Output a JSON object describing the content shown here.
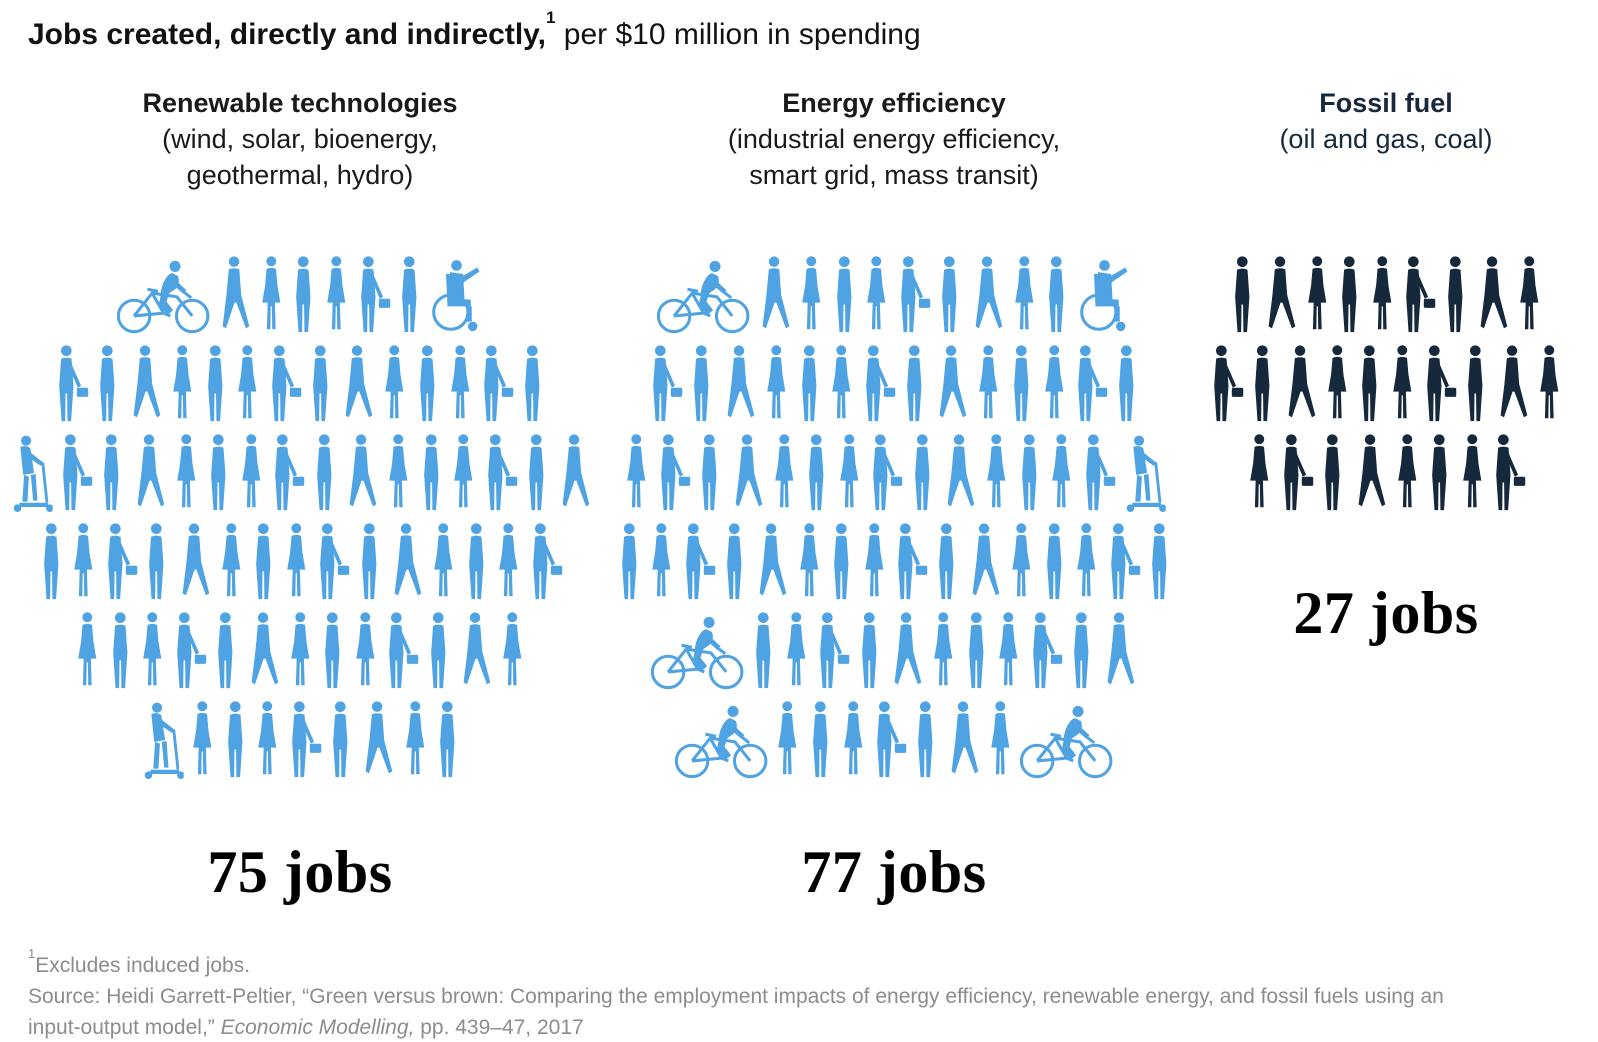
{
  "title": {
    "bold": "Jobs created, directly and indirectly,",
    "sup": "1",
    "regular": " per $10 million in spending"
  },
  "footnote": {
    "sup": "1",
    "text": "Excludes induced jobs."
  },
  "source": {
    "prefix": "Source: Heidi Garrett-Peltier, “Green versus brown: Comparing the employment impacts of energy efficiency, renewable energy, and fossil fuels using an input-output model,” ",
    "italic": "Economic Modelling,",
    "suffix": "  pp. 439–47, 2017"
  },
  "colors": {
    "pictogram_blue": "#4FA3E2",
    "pictogram_navy": "#16283C",
    "heading_black": "#1a1a1a",
    "footnote_gray": "#8C8C8C"
  },
  "icons": {
    "stand-a": "standing person silhouette",
    "stand-b": "standing woman silhouette",
    "walk": "walking person silhouette",
    "briefcase": "person with briefcase silhouette",
    "cyclist": "person riding bicycle silhouette",
    "wheelchair": "person in wheelchair silhouette",
    "scooter": "person on kick scooter silhouette"
  },
  "chart_data": {
    "type": "bar",
    "variant": "pictogram (isotype) — one person icon = one job",
    "title": "Jobs created, directly and indirectly, per $10 million in spending",
    "unit": "jobs",
    "legend": "none",
    "axes": "none",
    "categories": [
      "Renewable technologies",
      "Energy efficiency",
      "Fossil fuel"
    ],
    "values": [
      75,
      77,
      27
    ],
    "series": [
      {
        "name": "Renewable technologies",
        "subtitle_lines": [
          "(wind, solar, bioenergy,",
          "geothermal, hydro)"
        ],
        "value": 75,
        "label": "75 jobs",
        "color": "#4FA3E2",
        "rows": [
          8,
          14,
          16,
          15,
          13,
          9
        ],
        "features": [
          {
            "row": 0,
            "pos": 0,
            "icon": "cyclist"
          },
          {
            "row": 0,
            "pos": 7,
            "icon": "wheelchair"
          },
          {
            "row": 2,
            "pos": 0,
            "icon": "scooter"
          },
          {
            "row": 5,
            "pos": 0,
            "icon": "scooter"
          }
        ]
      },
      {
        "name": "Energy efficiency",
        "subtitle_lines": [
          "(industrial energy efficiency,",
          "smart grid, mass transit)"
        ],
        "value": 77,
        "label": "77 jobs",
        "color": "#4FA3E2",
        "rows": [
          11,
          14,
          15,
          16,
          12,
          9
        ],
        "features": [
          {
            "row": 0,
            "pos": 0,
            "icon": "cyclist"
          },
          {
            "row": 0,
            "pos": 10,
            "icon": "wheelchair"
          },
          {
            "row": 2,
            "pos": 14,
            "icon": "scooter"
          },
          {
            "row": 4,
            "pos": 0,
            "icon": "cyclist"
          },
          {
            "row": 5,
            "pos": 0,
            "icon": "cyclist"
          },
          {
            "row": 5,
            "pos": 8,
            "icon": "cyclist"
          }
        ]
      },
      {
        "name": "Fossil fuel",
        "subtitle_lines": [
          "(oil and gas, coal)"
        ],
        "value": 27,
        "label": "27 jobs",
        "color": "#16283C",
        "rows": [
          9,
          10,
          8
        ],
        "features": []
      }
    ]
  }
}
